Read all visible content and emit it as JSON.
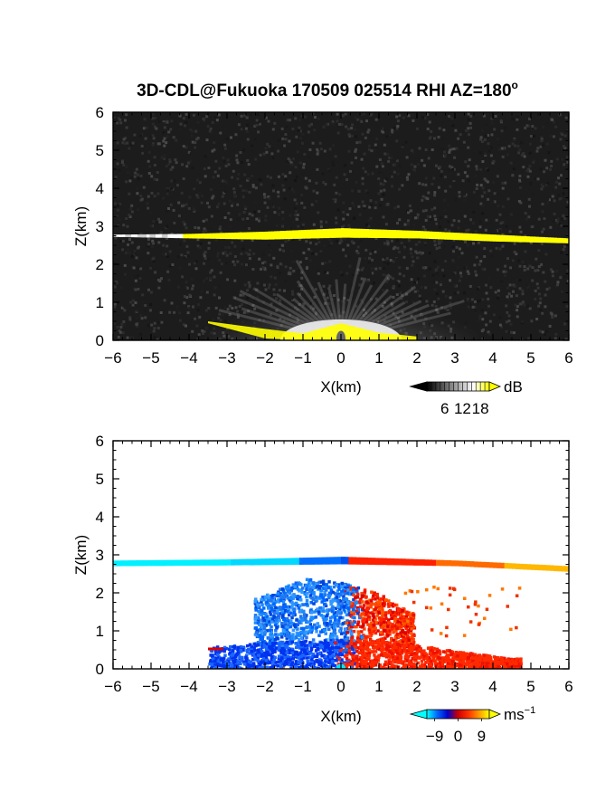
{
  "page": {
    "title": "3D-CDL@Fukuoka 170509 025514 RHI AZ=180",
    "title_degree": "o"
  },
  "chart_data": [
    {
      "type": "heatmap",
      "name": "reflectivity",
      "xlabel": "X(km)",
      "ylabel": "Z(km)",
      "xlim": [
        -6,
        6
      ],
      "ylim": [
        0,
        6
      ],
      "xticks": [
        -6,
        -5,
        -4,
        -3,
        -2,
        -1,
        0,
        1,
        2,
        3,
        4,
        5,
        6
      ],
      "yticks": [
        0,
        1,
        2,
        3,
        4,
        5,
        6
      ],
      "background_color": "#1c1c1c",
      "colorbar": {
        "unit": "dB",
        "ticks": [
          6,
          12,
          18
        ],
        "range": [
          0,
          21
        ],
        "colors": [
          "#000000",
          "#555555",
          "#aaaaaa",
          "#ffffff",
          "#ffff00"
        ]
      },
      "features": {
        "layer_top_km": [
          [
            -6,
            2.78
          ],
          [
            -4,
            2.8
          ],
          [
            -2,
            2.86
          ],
          [
            0,
            2.95
          ],
          [
            2,
            2.88
          ],
          [
            4,
            2.78
          ],
          [
            6,
            2.68
          ]
        ],
        "layer_bottom_km": [
          [
            -6,
            2.72
          ],
          [
            -4,
            2.68
          ],
          [
            -2,
            2.65
          ],
          [
            0,
            2.7
          ],
          [
            2,
            2.68
          ],
          [
            4,
            2.6
          ],
          [
            6,
            2.55
          ]
        ],
        "ground_return_top_km": [
          [
            -3.5,
            0.5
          ],
          [
            -2,
            0.3
          ],
          [
            -1,
            0.18
          ],
          [
            0,
            0.45
          ],
          [
            1,
            0.2
          ],
          [
            2,
            0.1
          ]
        ],
        "ground_return_bottom_km": [
          [
            -3.5,
            0.45
          ],
          [
            -2,
            0.05
          ],
          [
            -1,
            0
          ],
          [
            1,
            0
          ],
          [
            2,
            0
          ]
        ]
      }
    },
    {
      "type": "heatmap",
      "name": "doppler_velocity",
      "xlabel": "X(km)",
      "ylabel": "Z(km)",
      "xlim": [
        -6,
        6
      ],
      "ylim": [
        0,
        6
      ],
      "xticks": [
        -6,
        -5,
        -4,
        -3,
        -2,
        -1,
        0,
        1,
        2,
        3,
        4,
        5,
        6
      ],
      "yticks": [
        0,
        1,
        2,
        3,
        4,
        5,
        6
      ],
      "background_color": "#ffffff",
      "colorbar": {
        "unit": "ms",
        "unit_exponent": "−1",
        "ticks": [
          "−9",
          "0",
          "9"
        ],
        "range": [
          -12,
          12
        ],
        "colors": [
          "#00ffff",
          "#0066ff",
          "#0000cc",
          "#cc0000",
          "#ff3300",
          "#ff9900",
          "#ffff00"
        ]
      },
      "features": {
        "layer_top_km": [
          [
            -6,
            2.85
          ],
          [
            -3,
            2.88
          ],
          [
            0,
            2.95
          ],
          [
            3,
            2.85
          ],
          [
            6,
            2.7
          ]
        ],
        "layer_bottom_km": [
          [
            -6,
            2.7
          ],
          [
            -3,
            2.72
          ],
          [
            0,
            2.75
          ],
          [
            3,
            2.7
          ],
          [
            6,
            2.55
          ]
        ],
        "plume_top_km": [
          [
            -2.2,
            1.9
          ],
          [
            -1,
            2.4
          ],
          [
            0,
            2.3
          ],
          [
            1,
            2.0
          ],
          [
            1.8,
            1.5
          ]
        ],
        "low_layer_top_km": [
          [
            -3.5,
            0.6
          ],
          [
            -1,
            0.8
          ],
          [
            1,
            0.8
          ],
          [
            3,
            0.5
          ],
          [
            4.5,
            0.3
          ]
        ]
      }
    }
  ]
}
